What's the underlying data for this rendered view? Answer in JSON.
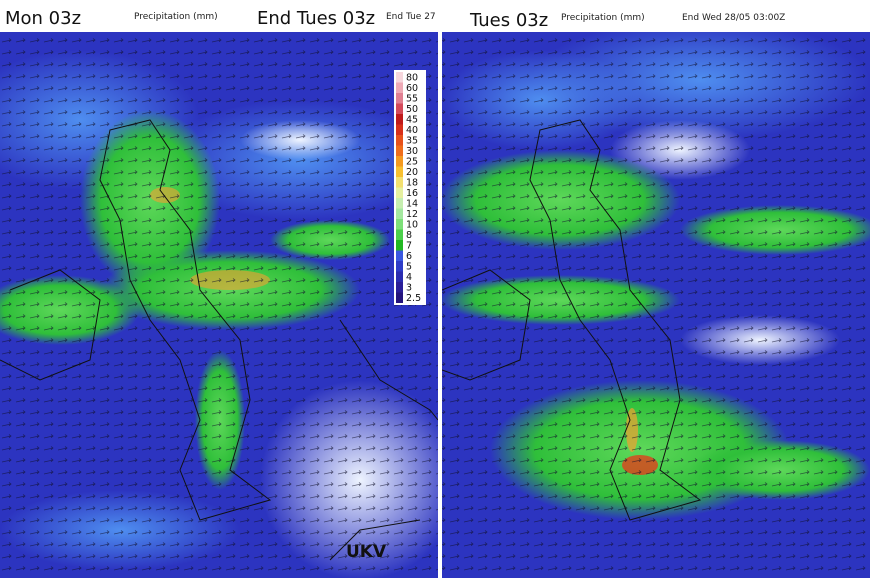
{
  "left_panel": {
    "title": "Mon 03z",
    "subtitle": "Precipitation (mm)",
    "end_label": "End Tues 03z",
    "end_note": "End Tue 27",
    "model_label": "UKV",
    "legend": [
      {
        "label": "80",
        "color": "#f6d6dc"
      },
      {
        "label": "60",
        "color": "#eeaab6"
      },
      {
        "label": "55",
        "color": "#e08092"
      },
      {
        "label": "50",
        "color": "#d44a5a"
      },
      {
        "label": "45",
        "color": "#c01a1a"
      },
      {
        "label": "40",
        "color": "#d8301a"
      },
      {
        "label": "35",
        "color": "#e8521c"
      },
      {
        "label": "30",
        "color": "#f06e1c"
      },
      {
        "label": "25",
        "color": "#f59a20"
      },
      {
        "label": "20",
        "color": "#f8c030"
      },
      {
        "label": "18",
        "color": "#f3e070"
      },
      {
        "label": "16",
        "color": "#e6f0a0"
      },
      {
        "label": "14",
        "color": "#c6eeb0"
      },
      {
        "label": "12",
        "color": "#a4e8a0"
      },
      {
        "label": "10",
        "color": "#7ee07a"
      },
      {
        "label": "8",
        "color": "#4cd04c"
      },
      {
        "label": "7",
        "color": "#22b822"
      },
      {
        "label": "6",
        "color": "#3a58e0"
      },
      {
        "label": "5",
        "color": "#2e3cc8"
      },
      {
        "label": "4",
        "color": "#2a2cb0"
      },
      {
        "label": "3",
        "color": "#2a1e98"
      },
      {
        "label": "2.5",
        "color": "#24147c"
      }
    ]
  },
  "right_panel": {
    "title": "Tues 03z",
    "subtitle": "Precipitation (mm)",
    "end_label": "End Wed 28/05 03:00Z"
  }
}
